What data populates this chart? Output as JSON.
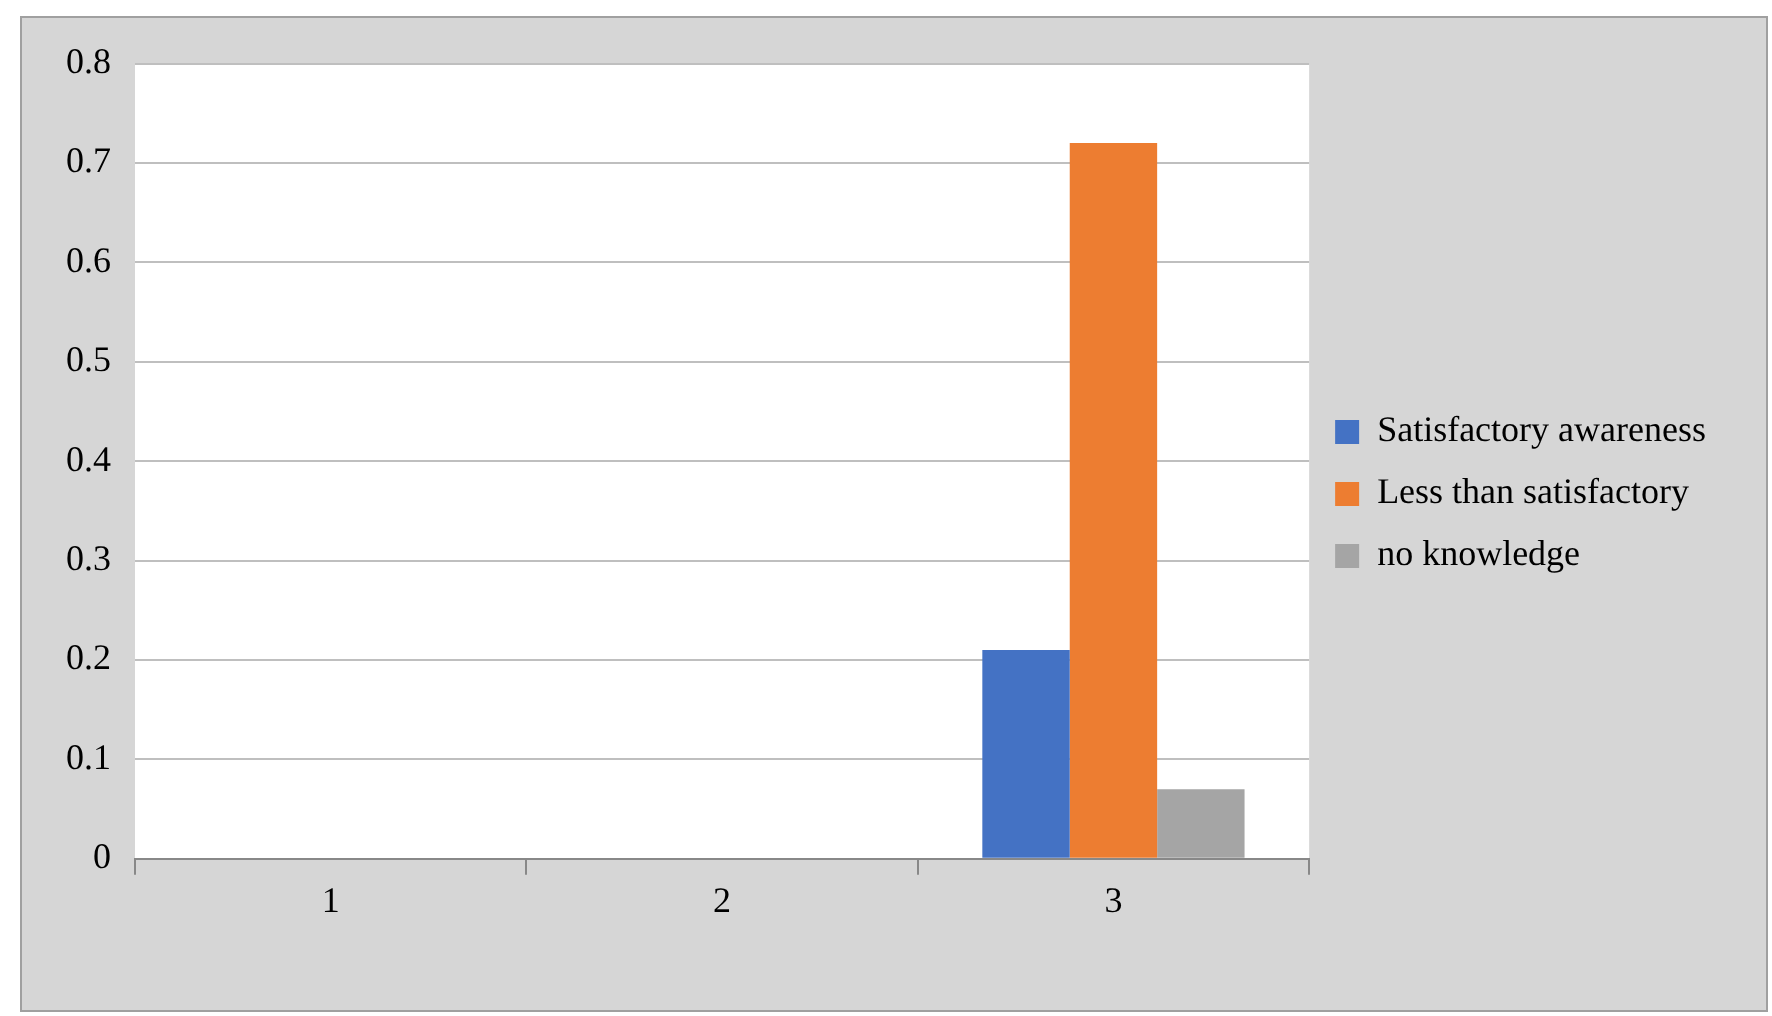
{
  "chart_data": {
    "type": "bar",
    "categories": [
      "1",
      "2",
      "3"
    ],
    "series": [
      {
        "name": "Satisfactory awareness",
        "color": "#4472c4",
        "values": [
          0,
          0,
          0.21
        ]
      },
      {
        "name": "Less than satisfactory",
        "color": "#ed7d31",
        "values": [
          0,
          0,
          0.72
        ]
      },
      {
        "name": "no knowledge",
        "color": "#a5a5a5",
        "values": [
          0,
          0,
          0.07
        ]
      }
    ],
    "ylim": [
      0,
      0.8
    ],
    "yticks": [
      0,
      0.1,
      0.2,
      0.3,
      0.4,
      0.5,
      0.6,
      0.7,
      0.8
    ],
    "grid": "y",
    "legend": "right"
  }
}
